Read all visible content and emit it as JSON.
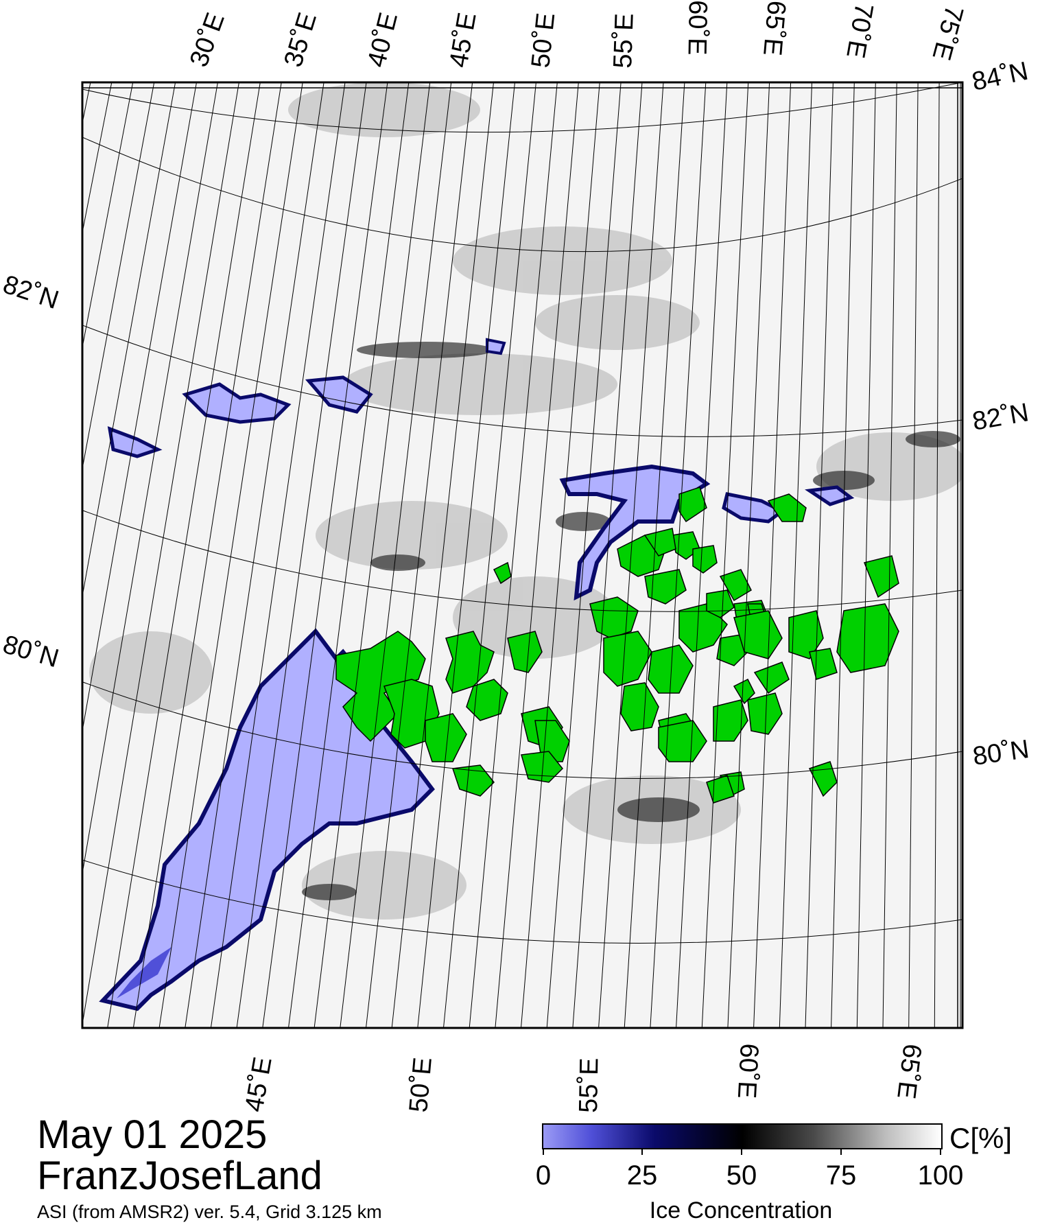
{
  "map": {
    "top_lon_labels": [
      "30˚E",
      "35˚E",
      "40˚E",
      "45˚E",
      "50˚E",
      "55˚E",
      "60˚E",
      "65˚E",
      "70˚E",
      "75˚E"
    ],
    "bottom_lon_labels": [
      "45˚E",
      "50˚E",
      "55˚E",
      "60˚E",
      "65˚E"
    ],
    "left_lat_labels": [
      "82˚N",
      "80˚N"
    ],
    "right_lat_labels": [
      "84˚N",
      "82˚N",
      "80˚N"
    ],
    "land_color": "#00d000",
    "ice_low_color": "#b0b0ff",
    "ice_mid_color": "#0a0a6a"
  },
  "caption": {
    "date": "May 01 2025",
    "region": "FranzJosefLand",
    "product": "ASI (from AMSR2) ver. 5.4,  Grid 3.125 km"
  },
  "legend": {
    "unit": "C[%]",
    "ticks": [
      "0",
      "25",
      "50",
      "75",
      "100"
    ],
    "title": "Ice Concentration"
  }
}
